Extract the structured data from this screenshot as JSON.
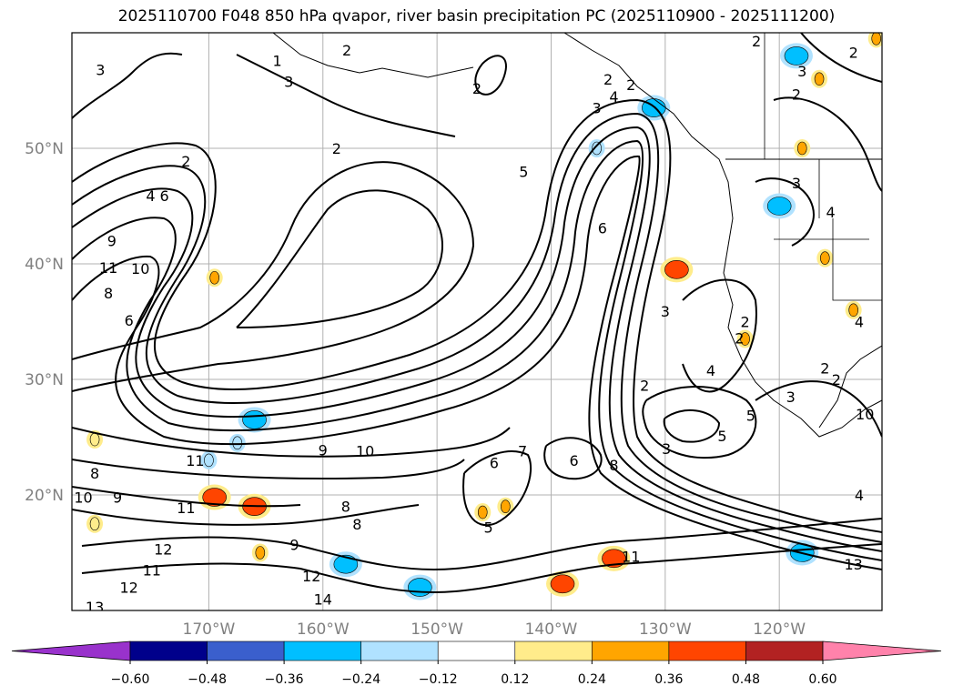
{
  "title": "2025110700 F048 850 hPa qvapor, river basin precipitation PC (2025110900 - 2025111200)",
  "chart_data": {
    "type": "map-contour",
    "title": "2025110700 F048 850 hPa qvapor, river basin precipitation PC (2025110900 - 2025111200)",
    "lon_range": [
      -182,
      -111
    ],
    "lat_range": [
      10,
      60
    ],
    "lon_ticks": [
      {
        "value": -170,
        "label": "170°W"
      },
      {
        "value": -160,
        "label": "160°W"
      },
      {
        "value": -150,
        "label": "150°W"
      },
      {
        "value": -140,
        "label": "140°W"
      },
      {
        "value": -130,
        "label": "130°W"
      },
      {
        "value": -120,
        "label": "120°W"
      }
    ],
    "lat_ticks": [
      {
        "value": 50,
        "label": "50°N"
      },
      {
        "value": 40,
        "label": "40°N"
      },
      {
        "value": 30,
        "label": "30°N"
      },
      {
        "value": 20,
        "label": "20°N"
      }
    ],
    "contour_labels": [
      {
        "lon": -179.5,
        "lat": 56.8,
        "label": "3"
      },
      {
        "lon": -172.0,
        "lat": 48.9,
        "label": "2"
      },
      {
        "lon": -163.0,
        "lat": 55.8,
        "label": "3"
      },
      {
        "lon": -158.8,
        "lat": 50.0,
        "label": "2"
      },
      {
        "lon": -157.9,
        "lat": 58.5,
        "label": "2"
      },
      {
        "lon": -146.5,
        "lat": 55.2,
        "label": "2"
      },
      {
        "lon": -175.1,
        "lat": 45.9,
        "label": "4"
      },
      {
        "lon": -173.9,
        "lat": 45.9,
        "label": "6"
      },
      {
        "lon": -178.8,
        "lat": 39.7,
        "label": "11"
      },
      {
        "lon": -176.0,
        "lat": 39.6,
        "label": "10"
      },
      {
        "lon": -178.5,
        "lat": 42.0,
        "label": "9"
      },
      {
        "lon": -178.8,
        "lat": 37.5,
        "label": "8"
      },
      {
        "lon": -177.0,
        "lat": 35.1,
        "label": "6"
      },
      {
        "lon": -142.4,
        "lat": 48.0,
        "label": "5"
      },
      {
        "lon": -135.5,
        "lat": 43.1,
        "label": "6"
      },
      {
        "lon": -130.0,
        "lat": 35.9,
        "label": "3"
      },
      {
        "lon": -160.0,
        "lat": 23.9,
        "label": "9"
      },
      {
        "lon": -156.3,
        "lat": 23.8,
        "label": "10"
      },
      {
        "lon": -171.2,
        "lat": 23.0,
        "label": "11"
      },
      {
        "lon": -180.0,
        "lat": 21.9,
        "label": "8"
      },
      {
        "lon": -181.0,
        "lat": 19.8,
        "label": "10"
      },
      {
        "lon": -178.0,
        "lat": 19.8,
        "label": "9"
      },
      {
        "lon": -172.0,
        "lat": 18.9,
        "label": "11"
      },
      {
        "lon": -145.0,
        "lat": 22.8,
        "label": "6"
      },
      {
        "lon": -142.5,
        "lat": 23.8,
        "label": "7"
      },
      {
        "lon": -138.0,
        "lat": 23.0,
        "label": "6"
      },
      {
        "lon": -134.5,
        "lat": 22.6,
        "label": "8"
      },
      {
        "lon": -131.8,
        "lat": 29.5,
        "label": "2"
      },
      {
        "lon": -129.9,
        "lat": 24.0,
        "label": "3"
      },
      {
        "lon": -145.5,
        "lat": 17.2,
        "label": "5"
      },
      {
        "lon": -133.0,
        "lat": 14.7,
        "label": "11"
      },
      {
        "lon": -158.0,
        "lat": 19.0,
        "label": "8"
      },
      {
        "lon": -162.5,
        "lat": 15.7,
        "label": "9"
      },
      {
        "lon": -157.0,
        "lat": 17.5,
        "label": "8"
      },
      {
        "lon": -174.0,
        "lat": 15.3,
        "label": "12"
      },
      {
        "lon": -175.0,
        "lat": 13.5,
        "label": "11"
      },
      {
        "lon": -177.0,
        "lat": 12.0,
        "label": "12"
      },
      {
        "lon": -180.0,
        "lat": 10.3,
        "label": "13"
      },
      {
        "lon": -161.0,
        "lat": 13.0,
        "label": "12"
      },
      {
        "lon": -160.0,
        "lat": 11.0,
        "label": "14"
      },
      {
        "lon": -126.0,
        "lat": 30.8,
        "label": "4"
      },
      {
        "lon": -122.5,
        "lat": 26.9,
        "label": "5"
      },
      {
        "lon": -125.0,
        "lat": 25.1,
        "label": "5"
      },
      {
        "lon": -119.0,
        "lat": 28.5,
        "label": "3"
      },
      {
        "lon": -116.0,
        "lat": 31.0,
        "label": "2"
      },
      {
        "lon": -115.0,
        "lat": 30.0,
        "label": "2"
      },
      {
        "lon": -112.5,
        "lat": 27.0,
        "label": "10"
      },
      {
        "lon": -123.5,
        "lat": 33.6,
        "label": "2"
      },
      {
        "lon": -123.0,
        "lat": 35.0,
        "label": "2"
      },
      {
        "lon": -118.5,
        "lat": 47.0,
        "label": "3"
      },
      {
        "lon": -115.5,
        "lat": 44.5,
        "label": "4"
      },
      {
        "lon": -113.5,
        "lat": 58.3,
        "label": "2"
      },
      {
        "lon": -118.0,
        "lat": 56.7,
        "label": "3"
      },
      {
        "lon": -118.5,
        "lat": 54.7,
        "label": "2"
      },
      {
        "lon": -113.0,
        "lat": 35.0,
        "label": "4"
      },
      {
        "lon": -113.0,
        "lat": 20.0,
        "label": "4"
      },
      {
        "lon": -113.5,
        "lat": 14.0,
        "label": "13"
      },
      {
        "lon": -135.0,
        "lat": 56.0,
        "label": "2"
      },
      {
        "lon": -134.5,
        "lat": 54.5,
        "label": "4"
      },
      {
        "lon": -136.0,
        "lat": 53.5,
        "label": "3"
      },
      {
        "lon": -133.0,
        "lat": 55.5,
        "label": "2"
      },
      {
        "lon": -122.0,
        "lat": 59.3,
        "label": "2"
      },
      {
        "lon": -164.0,
        "lat": 57.6,
        "label": "1"
      }
    ],
    "shaded_precip_pc": [
      {
        "lon": -167.5,
        "lat": 24.5,
        "value": -0.24
      },
      {
        "lon": -158.0,
        "lat": 14.0,
        "value": -0.36
      },
      {
        "lon": -151.5,
        "lat": 12.0,
        "value": -0.36
      },
      {
        "lon": -118.0,
        "lat": 15.0,
        "value": -0.36
      },
      {
        "lon": -131.0,
        "lat": 53.5,
        "value": -0.36
      },
      {
        "lon": -120.0,
        "lat": 45.0,
        "value": -0.36
      },
      {
        "lon": -118.5,
        "lat": 58.0,
        "value": -0.36
      },
      {
        "lon": -166.0,
        "lat": 26.5,
        "value": -0.36
      },
      {
        "lon": -170.0,
        "lat": 23.0,
        "value": -0.24
      },
      {
        "lon": -136.0,
        "lat": 50.0,
        "value": -0.24
      },
      {
        "lon": -139.0,
        "lat": 12.3,
        "value": 0.36
      },
      {
        "lon": -134.5,
        "lat": 14.5,
        "value": 0.36
      },
      {
        "lon": -169.5,
        "lat": 19.8,
        "value": 0.36
      },
      {
        "lon": -166.0,
        "lat": 19.0,
        "value": 0.36
      },
      {
        "lon": -144.0,
        "lat": 19.0,
        "value": 0.24
      },
      {
        "lon": -146.0,
        "lat": 18.5,
        "value": 0.24
      },
      {
        "lon": -118.0,
        "lat": 50.0,
        "value": 0.24
      },
      {
        "lon": -116.5,
        "lat": 56.0,
        "value": 0.24
      },
      {
        "lon": -111.5,
        "lat": 59.5,
        "value": 0.24
      },
      {
        "lon": -123.0,
        "lat": 33.5,
        "value": 0.24
      },
      {
        "lon": -129.0,
        "lat": 39.5,
        "value": 0.36
      },
      {
        "lon": -113.5,
        "lat": 36.0,
        "value": 0.24
      },
      {
        "lon": -116.0,
        "lat": 40.5,
        "value": 0.24
      },
      {
        "lon": -169.5,
        "lat": 38.8,
        "value": 0.24
      },
      {
        "lon": -180.0,
        "lat": 24.8,
        "value": 0.12
      },
      {
        "lon": -180.0,
        "lat": 17.5,
        "value": 0.12
      },
      {
        "lon": -165.5,
        "lat": 15.0,
        "value": 0.24
      }
    ],
    "colorbar": {
      "ticks": [
        "−0.60",
        "−0.48",
        "−0.36",
        "−0.24",
        "−0.12",
        "0.12",
        "0.24",
        "0.36",
        "0.48",
        "0.60"
      ],
      "bins": [
        {
          "color": "#9932cc"
        },
        {
          "color": "#00008b"
        },
        {
          "color": "#3a5fcd"
        },
        {
          "color": "#00bfff"
        },
        {
          "color": "#b0e2ff"
        },
        {
          "color": "#ffffff"
        },
        {
          "color": "#ffec8b"
        },
        {
          "color": "#ffa500"
        },
        {
          "color": "#ff4500"
        },
        {
          "color": "#b22222"
        },
        {
          "color": "#ff82ab"
        },
        {
          "color": "#ff82ab"
        }
      ]
    }
  }
}
